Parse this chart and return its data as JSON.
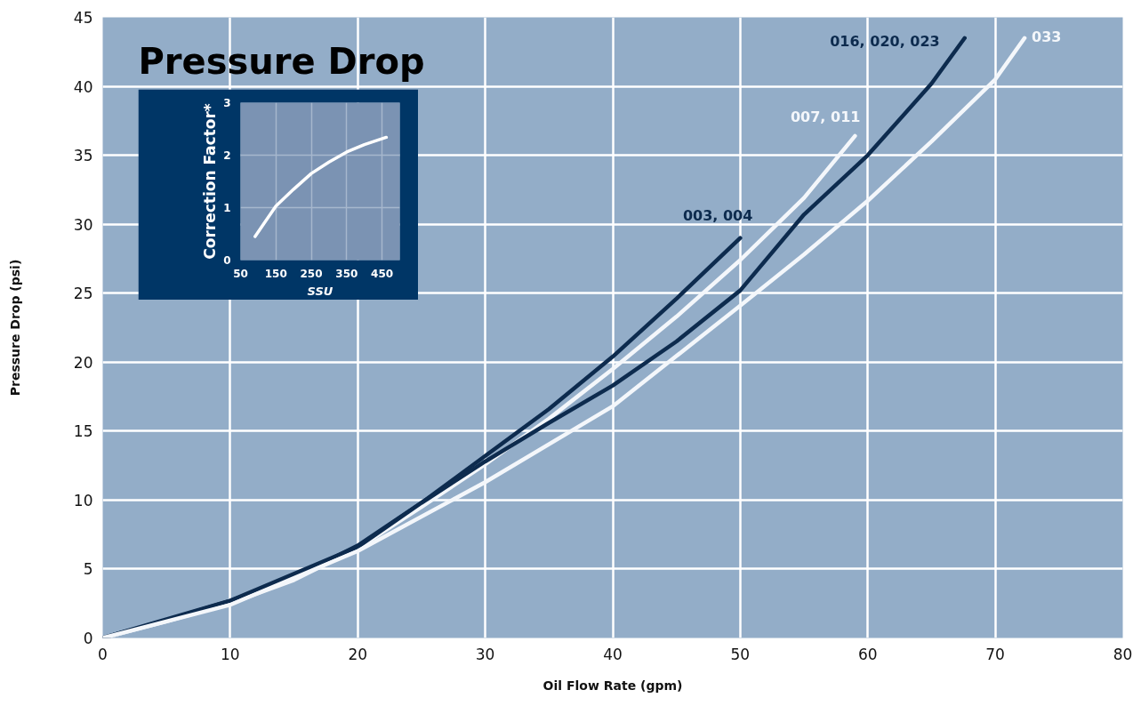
{
  "chart_data": [
    {
      "type": "line",
      "title": "Pressure Drop",
      "xlabel": "Oil Flow Rate (gpm)",
      "ylabel": "Pressure Drop (psi)",
      "xlim": [
        0,
        80
      ],
      "ylim": [
        0,
        45
      ],
      "xticks": [
        0,
        10,
        20,
        30,
        40,
        50,
        60,
        70,
        80
      ],
      "yticks": [
        0,
        5,
        10,
        15,
        20,
        25,
        30,
        35,
        40,
        45
      ],
      "grid": true,
      "series": [
        {
          "name": "003, 004",
          "color": "#0d2b4e",
          "x": [
            0,
            5,
            10,
            15,
            20,
            25,
            30,
            35,
            40,
            45,
            50
          ],
          "values": [
            0,
            1.3,
            2.7,
            4.4,
            6.7,
            9.8,
            13.2,
            16.6,
            20.4,
            24.6,
            29
          ]
        },
        {
          "name": "007, 011",
          "color": "#f4f7fb",
          "x": [
            0,
            5,
            10,
            15,
            20,
            25,
            30,
            35,
            40,
            45,
            50,
            55,
            59
          ],
          "values": [
            0,
            1.2,
            2.5,
            4.2,
            6.5,
            9.5,
            12.6,
            15.9,
            19.5,
            23.3,
            27.4,
            31.9,
            36.4
          ]
        },
        {
          "name": "016, 020, 023",
          "color": "#0d2b4e",
          "x": [
            0,
            10,
            20,
            25,
            30,
            35,
            40,
            45,
            50,
            55,
            60,
            65,
            67.6
          ],
          "values": [
            0,
            2.7,
            6.6,
            9.8,
            12.8,
            15.6,
            18.3,
            21.5,
            25.2,
            30.7,
            35,
            40.2,
            43.5
          ]
        },
        {
          "name": "033",
          "color": "#f4f7fb",
          "x": [
            0,
            10,
            20,
            30,
            40,
            50,
            55,
            60,
            65,
            70,
            72.3
          ],
          "values": [
            0,
            2.4,
            6.3,
            11.3,
            16.8,
            24.1,
            27.8,
            31.7,
            36,
            40.5,
            43.5
          ]
        }
      ]
    },
    {
      "type": "line",
      "xlabel": "SSU",
      "ylabel": "Correction Factor*",
      "xlim": [
        50,
        500
      ],
      "ylim": [
        0,
        3
      ],
      "xticks": [
        50,
        150,
        250,
        350,
        450
      ],
      "yticks": [
        0,
        1,
        2,
        3
      ],
      "grid": true,
      "series": [
        {
          "color": "#ffffff",
          "x": [
            91,
            150,
            200,
            250,
            300,
            350,
            400,
            462
          ],
          "values": [
            0.45,
            1.03,
            1.35,
            1.65,
            1.87,
            2.06,
            2.2,
            2.34
          ]
        }
      ]
    }
  ]
}
